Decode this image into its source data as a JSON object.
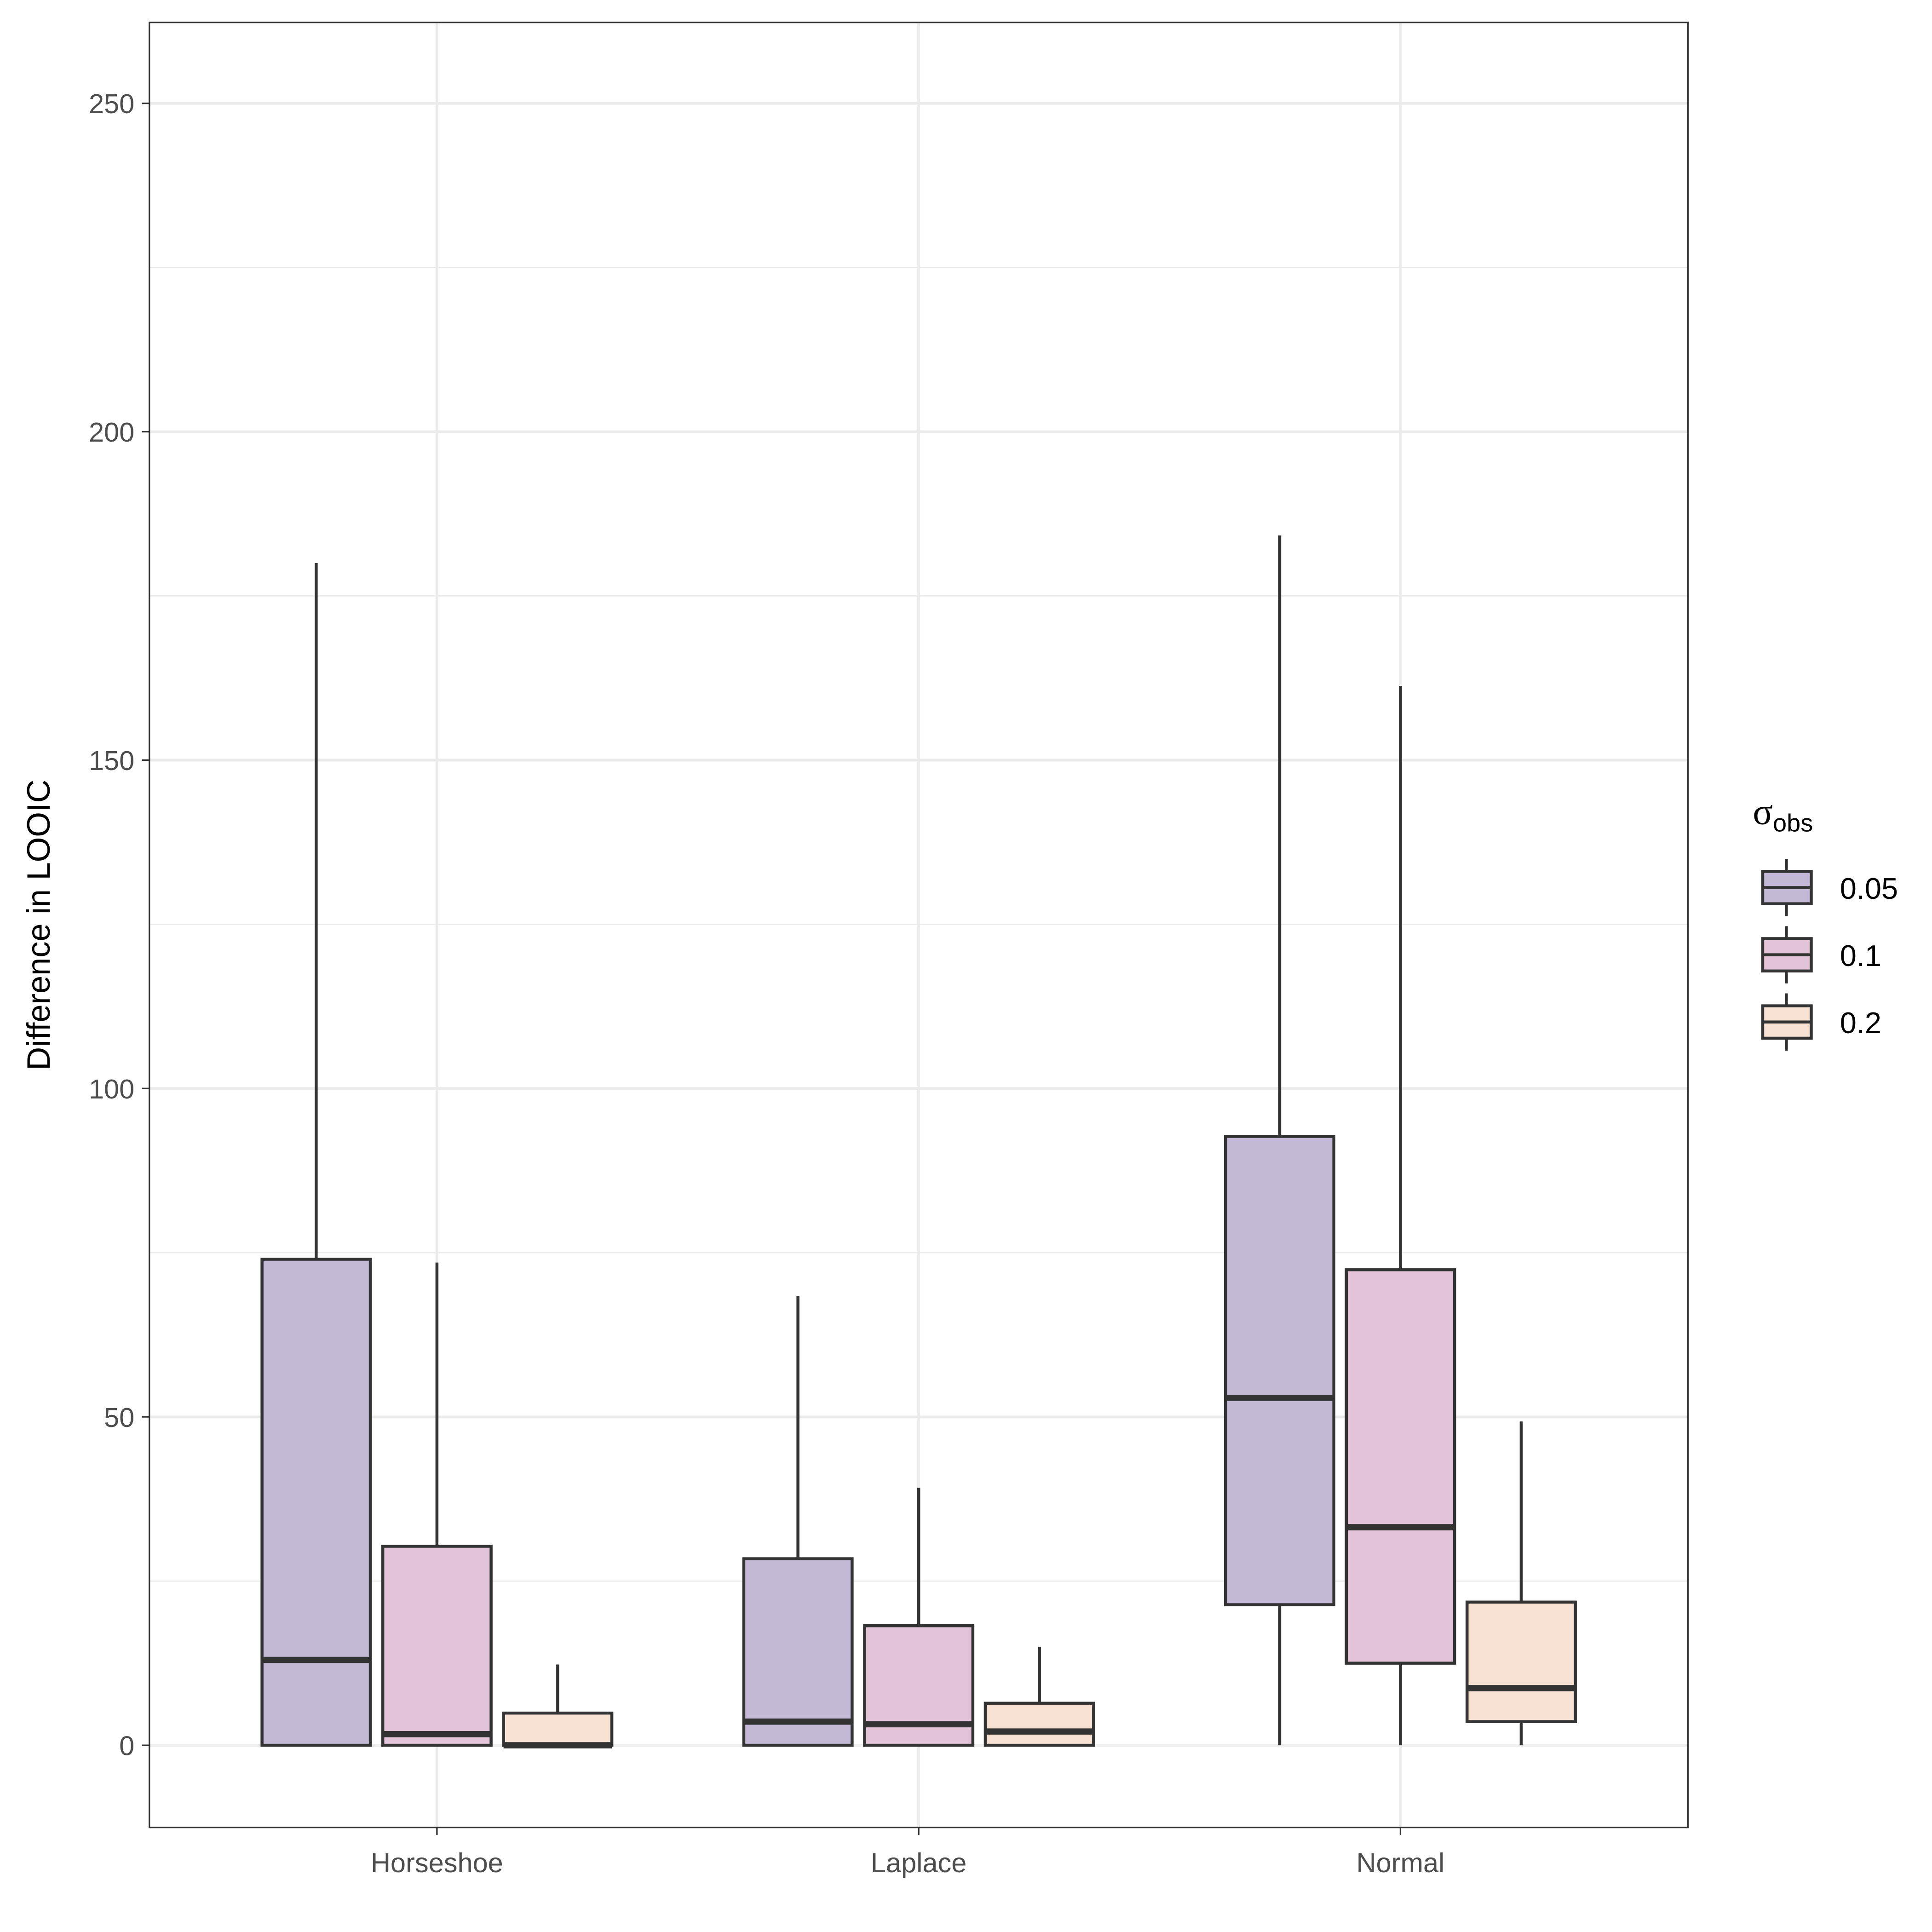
{
  "chart_data": {
    "type": "boxplot",
    "title": "",
    "xlabel": "",
    "ylabel": "Difference in LOOIC",
    "ylim": [
      -12.5,
      262
    ],
    "yticks": [
      0,
      50,
      100,
      150,
      200,
      250
    ],
    "ytick_labels": [
      "0",
      "50",
      "100",
      "150",
      "200",
      "250"
    ],
    "grid": true,
    "categories": [
      "Horseshoe",
      "Laplace",
      "Normal"
    ],
    "legend": {
      "title_symbol": "σ",
      "title_subscript": "obs",
      "placement": "right",
      "entries": [
        "0.05",
        "0.1",
        "0.2"
      ]
    },
    "colors": [
      "#C3B8D5",
      "#E3C3D7",
      "#F7E1D3"
    ],
    "outline_color": "#333333",
    "series": [
      {
        "name": "0.05",
        "boxes": [
          {
            "min": 0,
            "q1": 0,
            "median": 13,
            "q3": 74,
            "max": 180
          },
          {
            "min": 0,
            "q1": 0,
            "median": 3.6,
            "q3": 28.4,
            "max": 68.4
          },
          {
            "min": 0,
            "q1": 21.4,
            "median": 52.9,
            "q3": 92.7,
            "max": 184.2
          }
        ]
      },
      {
        "name": "0.1",
        "boxes": [
          {
            "min": 0,
            "q1": 0,
            "median": 1.7,
            "q3": 30.3,
            "max": 73.5
          },
          {
            "min": 0,
            "q1": 0,
            "median": 3.2,
            "q3": 18.2,
            "max": 39.2
          },
          {
            "min": 0,
            "q1": 12.5,
            "median": 33.2,
            "q3": 72.4,
            "max": 161.3
          }
        ]
      },
      {
        "name": "0.2",
        "boxes": [
          {
            "min": 0,
            "q1": 0,
            "median": 0,
            "q3": 4.9,
            "max": 12.3
          },
          {
            "min": 0,
            "q1": 0,
            "median": 2.1,
            "q3": 6.4,
            "max": 15
          },
          {
            "min": 0,
            "q1": 3.6,
            "median": 8.7,
            "q3": 21.8,
            "max": 49.3
          }
        ]
      }
    ]
  }
}
